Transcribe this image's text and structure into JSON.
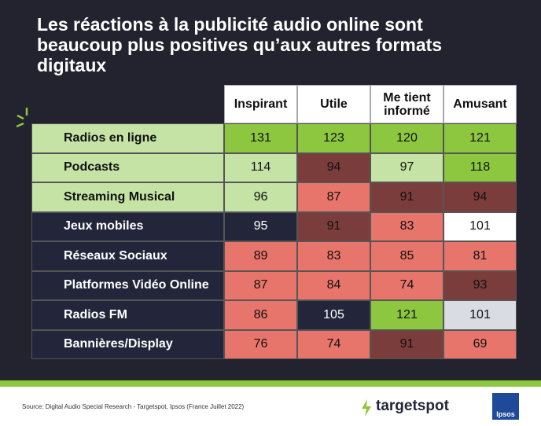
{
  "header": {
    "title": "Les réactions à la publicité audio online sont beaucoup plus positives qu’aux autres formats digitaux"
  },
  "table": {
    "columns": [
      "Inspirant",
      "Utile",
      "Me tient informé",
      "Amusant"
    ],
    "rows": [
      {
        "label": "Radios en ligne",
        "label_color": "#c6e3a6",
        "values": [
          131,
          123,
          120,
          121
        ],
        "colors": [
          "#8dc63f",
          "#8dc63f",
          "#8dc63f",
          "#8dc63f"
        ]
      },
      {
        "label": "Podcasts",
        "label_color": "#c6e3a6",
        "values": [
          114,
          94,
          97,
          118
        ],
        "colors": [
          "#c6e3a6",
          "#7b3d3c",
          "#c6e3a6",
          "#8dc63f"
        ]
      },
      {
        "label": "Streaming Musical",
        "label_color": "#c6e3a6",
        "values": [
          96,
          87,
          91,
          94
        ],
        "colors": [
          "#c6e3a6",
          "#e7756b",
          "#7b3d3c",
          "#7b3d3c"
        ]
      },
      {
        "label": "Jeux mobiles",
        "label_color": "#23263a",
        "values": [
          95,
          91,
          83,
          101
        ],
        "colors": [
          "#23263a",
          "#7b3d3c",
          "#e7756b",
          "#ffffff"
        ]
      },
      {
        "label": "Réseaux Sociaux",
        "label_color": "#23263a",
        "values": [
          89,
          83,
          85,
          81
        ],
        "colors": [
          "#e7756b",
          "#e7756b",
          "#e7756b",
          "#e7756b"
        ]
      },
      {
        "label": "Platformes Vidéo Online",
        "label_color": "#23263a",
        "values": [
          87,
          84,
          74,
          93
        ],
        "colors": [
          "#e7756b",
          "#e7756b",
          "#e7756b",
          "#7b3d3c"
        ]
      },
      {
        "label": "Radios FM",
        "label_color": "#23263a",
        "values": [
          86,
          105,
          121,
          101
        ],
        "colors": [
          "#e7756b",
          "#23263a",
          "#8dc63f",
          "#d9dde3"
        ]
      },
      {
        "label": "Bannières/Display",
        "label_color": "#23263a",
        "values": [
          76,
          74,
          91,
          69
        ],
        "colors": [
          "#e7756b",
          "#e7756b",
          "#7b3d3c",
          "#e7756b"
        ]
      }
    ]
  },
  "footer": {
    "source": "Source: Digital Audio Special Research - Targetspot, Ipsos (France Juillet 2022)",
    "brand": "targetspot",
    "partner": "Ipsos"
  }
}
